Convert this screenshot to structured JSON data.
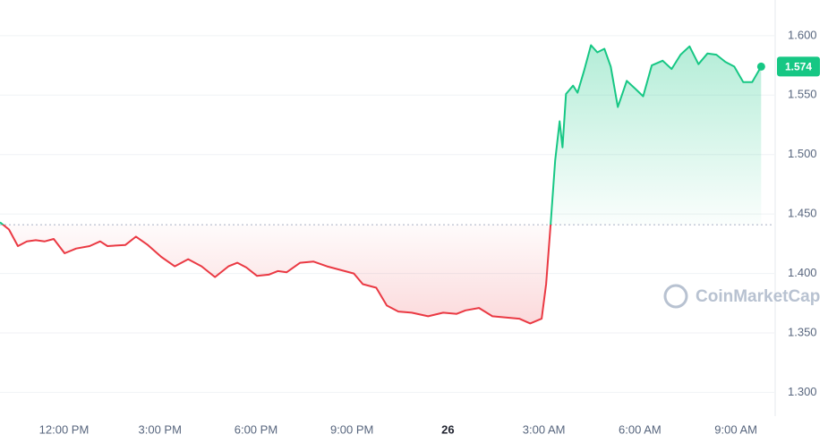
{
  "chart_data": {
    "type": "line",
    "watermark": "CoinMarketCap",
    "current_price": 1.574,
    "baseline": 1.441,
    "colors": {
      "up": "#16c784",
      "down": "#ea3943"
    },
    "xlim": [
      10,
      34.2
    ],
    "ylim": [
      1.28,
      1.63
    ],
    "grid": true,
    "xticks": [
      {
        "value": 12,
        "label": "12:00 PM"
      },
      {
        "value": 15,
        "label": "3:00 PM"
      },
      {
        "value": 18,
        "label": "6:00 PM"
      },
      {
        "value": 21,
        "label": "9:00 PM"
      },
      {
        "value": 24,
        "label": "26"
      },
      {
        "value": 27,
        "label": "3:00 AM"
      },
      {
        "value": 30,
        "label": "6:00 AM"
      },
      {
        "value": 33,
        "label": "9:00 AM"
      }
    ],
    "yticks": [
      {
        "value": 1.3,
        "label": "1.300"
      },
      {
        "value": 1.35,
        "label": "1.350"
      },
      {
        "value": 1.4,
        "label": "1.400"
      },
      {
        "value": 1.45,
        "label": "1.450"
      },
      {
        "value": 1.5,
        "label": "1.500"
      },
      {
        "value": 1.55,
        "label": "1.550"
      },
      {
        "value": 1.6,
        "label": "1.600"
      }
    ],
    "x": [
      10,
      10.28,
      10.56,
      10.84,
      11.12,
      11.4,
      11.68,
      12.02,
      12.38,
      12.8,
      13.13,
      13.36,
      13.92,
      14.25,
      14.62,
      15.04,
      15.46,
      15.88,
      16.3,
      16.72,
      17.14,
      17.42,
      17.7,
      18.03,
      18.4,
      18.68,
      18.96,
      19.38,
      19.8,
      20.22,
      20.64,
      21.06,
      21.34,
      21.76,
      22.09,
      22.45,
      22.87,
      23.38,
      23.85,
      24.27,
      24.55,
      24.97,
      25.39,
      25.81,
      26.23,
      26.57,
      26.93,
      27.07,
      27.21,
      27.35,
      27.49,
      27.58,
      27.69,
      27.91,
      28.05,
      28.25,
      28.47,
      28.67,
      28.89,
      29.09,
      29.31,
      29.59,
      29.87,
      30.1,
      30.37,
      30.71,
      30.99,
      31.27,
      31.55,
      31.83,
      32.11,
      32.39,
      32.67,
      32.95,
      33.23,
      33.51,
      33.79
    ],
    "values": [
      1.443,
      1.437,
      1.423,
      1.427,
      1.428,
      1.427,
      1.429,
      1.417,
      1.421,
      1.423,
      1.427,
      1.423,
      1.424,
      1.431,
      1.424,
      1.414,
      1.406,
      1.412,
      1.406,
      1.397,
      1.406,
      1.409,
      1.405,
      1.398,
      1.399,
      1.402,
      1.401,
      1.409,
      1.41,
      1.406,
      1.403,
      1.4,
      1.391,
      1.388,
      1.373,
      1.368,
      1.367,
      1.364,
      1.367,
      1.366,
      1.369,
      1.371,
      1.364,
      1.363,
      1.362,
      1.358,
      1.362,
      1.391,
      1.442,
      1.495,
      1.528,
      1.506,
      1.551,
      1.558,
      1.552,
      1.57,
      1.592,
      1.586,
      1.589,
      1.574,
      1.54,
      1.562,
      1.555,
      1.549,
      1.575,
      1.579,
      1.572,
      1.584,
      1.591,
      1.576,
      1.585,
      1.584,
      1.578,
      1.574,
      1.561,
      1.561,
      1.574
    ]
  }
}
